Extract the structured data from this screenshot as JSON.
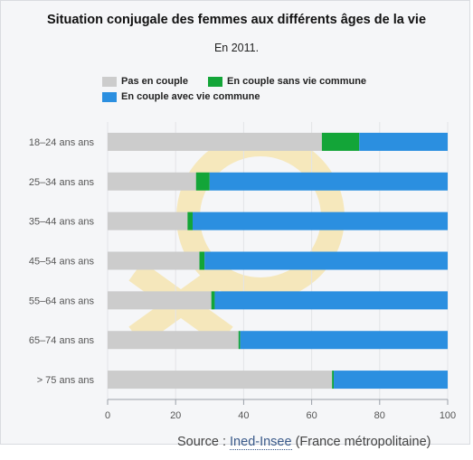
{
  "title": "Situation conjugale des femmes aux différents âges de la vie",
  "subtitle": "En 2011.",
  "source": {
    "prefix": "Source : ",
    "link_text": "Ined-Insee",
    "suffix": " (France métropolitaine)"
  },
  "colors": {
    "pas_en_couple": "#cccccc",
    "sans_vie_commune": "#13a538",
    "avec_vie_commune": "#2b8fe0",
    "watermark": "#f6dc8a"
  },
  "chart_data": {
    "type": "bar",
    "orientation": "horizontal",
    "stacked": true,
    "categories": [
      "18–24 ans ans",
      "25–34 ans ans",
      "35–44 ans ans",
      "45–54 ans ans",
      "55–64 ans ans",
      "65–74 ans ans",
      "> 75 ans ans"
    ],
    "series": [
      {
        "name": "Pas en couple",
        "values": [
          63,
          26,
          23.5,
          27,
          30.5,
          38.5,
          66
        ]
      },
      {
        "name": "En couple sans vie commune",
        "values": [
          11,
          4,
          1.5,
          1.5,
          1,
          0.5,
          0.5
        ]
      },
      {
        "name": "En couple avec vie commune",
        "values": [
          26,
          70,
          75,
          71.5,
          68.5,
          61,
          33.5
        ]
      }
    ],
    "xlim": [
      0,
      100
    ],
    "xticks": [
      0,
      20,
      40,
      60,
      80,
      100
    ],
    "xlabel": "",
    "ylabel": "",
    "grid": true,
    "legend_position": "top-left"
  }
}
